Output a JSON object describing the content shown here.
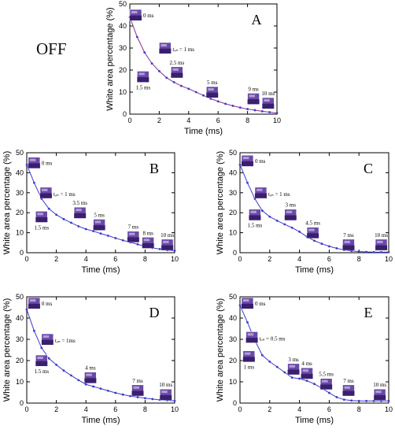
{
  "off_label": "OFF",
  "colors": {
    "line": "#3a3ad0",
    "marker": "#3a3ad0",
    "fit_line": "#d02a6a",
    "thumb_dark": "#3a1f6e",
    "thumb_mid": "#6a4aa8",
    "thumb_light": "#b9a9dc"
  },
  "chart_data": [
    {
      "panel": "A",
      "type": "line",
      "xlabel": "Time (ms)",
      "ylabel": "White area percentage (%)",
      "xlim": [
        0,
        10
      ],
      "ylim": [
        0,
        50
      ],
      "xticks": [
        0,
        2,
        4,
        6,
        8,
        10
      ],
      "yticks": [
        0,
        10,
        20,
        30,
        40,
        50
      ],
      "series": [
        {
          "x": [
            0,
            0.5,
            1,
            1.5,
            2,
            2.5,
            3,
            3.5,
            4,
            4.5,
            5,
            5.5,
            6,
            6.5,
            7,
            7.5,
            8,
            8.5,
            9,
            9.5,
            10
          ],
          "values": [
            44,
            35,
            28,
            23,
            19.5,
            16.5,
            14.5,
            12.8,
            11.5,
            10,
            8.5,
            7,
            5.8,
            4.7,
            3.8,
            3,
            2.3,
            1.8,
            1.3,
            0.9,
            0.5
          ]
        }
      ],
      "annotations": [
        {
          "label": "0 ms",
          "x": 0.4,
          "y": 45
        },
        {
          "label": "tₒₙ = 1 ms",
          "x": 2.4,
          "y": 30
        },
        {
          "label": "1.5 ms",
          "x": 0.9,
          "y": 17
        },
        {
          "label": "2.5 ms",
          "x": 3.2,
          "y": 19
        },
        {
          "label": "5 ms",
          "x": 5.6,
          "y": 10
        },
        {
          "label": "9 ms",
          "x": 8.4,
          "y": 7
        },
        {
          "label": "10 ms",
          "x": 9.4,
          "y": 5
        }
      ]
    },
    {
      "panel": "B",
      "type": "line",
      "xlabel": "Time (ms)",
      "ylabel": "White area percentage (%)",
      "xlim": [
        0,
        10
      ],
      "ylim": [
        0,
        50
      ],
      "xticks": [
        0,
        2,
        4,
        6,
        8,
        10
      ],
      "yticks": [
        0,
        10,
        20,
        30,
        40,
        50
      ],
      "series": [
        {
          "x": [
            0,
            0.5,
            1,
            1.5,
            2,
            2.5,
            3,
            3.5,
            4,
            4.5,
            5,
            5.5,
            6,
            6.5,
            7,
            7.5,
            8,
            8.5,
            9,
            9.5,
            10
          ],
          "values": [
            44,
            35,
            27,
            22,
            19,
            16.8,
            15,
            13.2,
            11.8,
            10.8,
            9.6,
            8.5,
            7.3,
            6.2,
            5.2,
            4.2,
            3.2,
            2.4,
            1.8,
            1.3,
            1
          ]
        }
      ],
      "annotations": [
        {
          "label": "0 ms",
          "x": 0.5,
          "y": 45
        },
        {
          "label": "tₒₙ = 1 ms",
          "x": 1.3,
          "y": 30
        },
        {
          "label": "1.5 ms",
          "x": 1,
          "y": 18
        },
        {
          "label": "3.5 ms",
          "x": 3.6,
          "y": 20
        },
        {
          "label": "5 ms",
          "x": 4.9,
          "y": 14
        },
        {
          "label": "7 ms",
          "x": 7.2,
          "y": 8
        },
        {
          "label": "8 ms",
          "x": 8.2,
          "y": 5
        },
        {
          "label": "10 ms",
          "x": 9.5,
          "y": 4
        }
      ]
    },
    {
      "panel": "C",
      "type": "line",
      "xlabel": "Time (ms)",
      "ylabel": "White area percentage (%)",
      "xlim": [
        0,
        10
      ],
      "ylim": [
        0,
        50
      ],
      "xticks": [
        0,
        2,
        4,
        6,
        8,
        10
      ],
      "yticks": [
        0,
        10,
        20,
        30,
        40,
        50
      ],
      "series": [
        {
          "x": [
            0,
            0.5,
            1,
            1.5,
            2,
            2.5,
            3,
            3.5,
            4,
            4.5,
            5,
            5.5,
            6,
            6.5,
            7,
            7.5,
            8,
            8.5,
            9,
            9.5,
            10
          ],
          "values": [
            44,
            35,
            27,
            21,
            18,
            16,
            14.2,
            12.5,
            10.5,
            8,
            6,
            4.5,
            3.2,
            2.2,
            1.4,
            0.9,
            0.6,
            0.4,
            0.3,
            0.3,
            0.3
          ]
        }
      ],
      "annotations": [
        {
          "label": "0 ms",
          "x": 0.5,
          "y": 46
        },
        {
          "label": "tₒₙ = 1 ms",
          "x": 1.4,
          "y": 30
        },
        {
          "label": "1.5 ms",
          "x": 1,
          "y": 19
        },
        {
          "label": "3 ms",
          "x": 3.4,
          "y": 19
        },
        {
          "label": "4.5 ms",
          "x": 4.9,
          "y": 10
        },
        {
          "label": "7 ms",
          "x": 7.3,
          "y": 4
        },
        {
          "label": "10 ms",
          "x": 9.5,
          "y": 4
        }
      ]
    },
    {
      "panel": "D",
      "type": "line",
      "xlabel": "Time (ms)",
      "ylabel": "White area percentage (%)",
      "xlim": [
        0,
        10
      ],
      "ylim": [
        0,
        50
      ],
      "xticks": [
        0,
        2,
        4,
        6,
        8,
        10
      ],
      "yticks": [
        0,
        10,
        20,
        30,
        40,
        50
      ],
      "series": [
        {
          "x": [
            0,
            0.5,
            1,
            1.5,
            2,
            2.5,
            3,
            3.5,
            4,
            4.5,
            5,
            5.5,
            6,
            6.5,
            7,
            7.5,
            8,
            8.5,
            9,
            9.5,
            10
          ],
          "values": [
            44,
            34,
            26,
            21,
            18,
            15.3,
            13,
            10.8,
            8.8,
            7.8,
            6.8,
            5.8,
            4.8,
            4,
            3.3,
            2.8,
            2.3,
            1.9,
            1.5,
            1.3,
            1
          ]
        }
      ],
      "annotations": [
        {
          "label": "0 ms",
          "x": 0.5,
          "y": 47
        },
        {
          "label": "tₒₙ = 1ms",
          "x": 1.4,
          "y": 30
        },
        {
          "label": "1.5 ms",
          "x": 1,
          "y": 20
        },
        {
          "label": "4 ms",
          "x": 4.3,
          "y": 12
        },
        {
          "label": "7 ms",
          "x": 7.5,
          "y": 6
        },
        {
          "label": "10 ms",
          "x": 9.4,
          "y": 4
        }
      ]
    },
    {
      "panel": "E",
      "type": "line",
      "xlabel": "Time (ms)",
      "ylabel": "White area percentage (%)",
      "xlim": [
        0,
        10
      ],
      "ylim": [
        0,
        50
      ],
      "xticks": [
        0,
        2,
        4,
        6,
        8,
        10
      ],
      "yticks": [
        0,
        10,
        20,
        30,
        40,
        50
      ],
      "series": [
        {
          "x": [
            0,
            0.5,
            1,
            1.5,
            2,
            2.5,
            3,
            3.5,
            4,
            4.5,
            5,
            5.5,
            6,
            6.5,
            7,
            7.5,
            8,
            8.5,
            9,
            9.5,
            10
          ],
          "values": [
            46,
            38,
            29.5,
            22.5,
            19.5,
            17,
            14.5,
            12,
            11.5,
            10.5,
            9,
            7,
            4.8,
            2.8,
            1.6,
            1.2,
            1,
            1,
            1,
            1,
            1
          ]
        }
      ],
      "annotations": [
        {
          "label": "0 ms",
          "x": 0.5,
          "y": 47
        },
        {
          "label": "tₒₙ = 0.5 ms",
          "x": 0.8,
          "y": 31
        },
        {
          "label": "1 ms",
          "x": 0.6,
          "y": 22
        },
        {
          "label": "3 ms",
          "x": 3.6,
          "y": 16
        },
        {
          "label": "4 ms",
          "x": 4.5,
          "y": 14
        },
        {
          "label": "5.5 ms",
          "x": 5.8,
          "y": 9
        },
        {
          "label": "7 ms",
          "x": 7.3,
          "y": 6
        },
        {
          "label": "10 ms",
          "x": 9.4,
          "y": 4
        }
      ]
    }
  ]
}
